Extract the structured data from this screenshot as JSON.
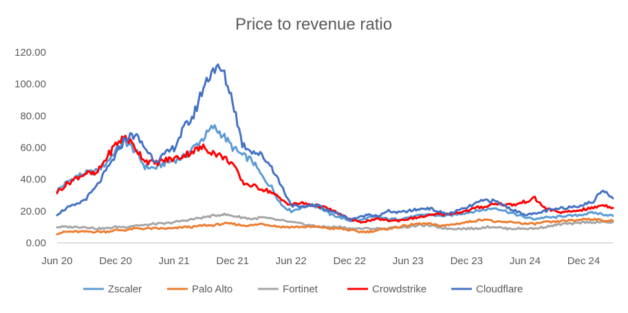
{
  "chart_data": {
    "type": "line",
    "title": "Price to revenue ratio",
    "xlabel": "",
    "ylabel": "",
    "ylim": [
      0,
      120
    ],
    "yticks": [
      "0.00",
      "20.00",
      "40.00",
      "60.00",
      "80.00",
      "100.00",
      "120.00"
    ],
    "xlim": [
      "2020-06",
      "2025-03"
    ],
    "xticks": [
      {
        "x": "2020-06",
        "label": "Jun 20"
      },
      {
        "x": "2020-12",
        "label": "Dec 20"
      },
      {
        "x": "2021-06",
        "label": "Jun 21"
      },
      {
        "x": "2021-12",
        "label": "Dec 21"
      },
      {
        "x": "2022-06",
        "label": "Jun 22"
      },
      {
        "x": "2022-12",
        "label": "Dec 22"
      },
      {
        "x": "2023-06",
        "label": "Jun 23"
      },
      {
        "x": "2023-12",
        "label": "Dec 23"
      },
      {
        "x": "2024-06",
        "label": "Jun 24"
      },
      {
        "x": "2024-12",
        "label": "Dec 24"
      }
    ],
    "grid": false,
    "legend_position": "bottom",
    "x": [
      "2020-06",
      "2020-07",
      "2020-08",
      "2020-09",
      "2020-10",
      "2020-11",
      "2020-12",
      "2021-01",
      "2021-02",
      "2021-03",
      "2021-04",
      "2021-05",
      "2021-06",
      "2021-07",
      "2021-08",
      "2021-09",
      "2021-10",
      "2021-11",
      "2021-12",
      "2022-01",
      "2022-02",
      "2022-03",
      "2022-04",
      "2022-05",
      "2022-06",
      "2022-07",
      "2022-08",
      "2022-09",
      "2022-10",
      "2022-11",
      "2022-12",
      "2023-01",
      "2023-02",
      "2023-03",
      "2023-04",
      "2023-05",
      "2023-06",
      "2023-07",
      "2023-08",
      "2023-09",
      "2023-10",
      "2023-11",
      "2023-12",
      "2024-01",
      "2024-02",
      "2024-03",
      "2024-04",
      "2024-05",
      "2024-06",
      "2024-07",
      "2024-08",
      "2024-09",
      "2024-10",
      "2024-11",
      "2024-12",
      "2025-01",
      "2025-02",
      "2025-03"
    ],
    "series": [
      {
        "name": "Zscaler",
        "color": "#5B9BD5",
        "values": [
          33,
          38,
          42,
          44,
          45,
          50,
          58,
          64,
          58,
          48,
          47,
          50,
          52,
          54,
          60,
          66,
          73,
          68,
          60,
          55,
          52,
          42,
          35,
          24,
          20,
          22,
          24,
          22,
          18,
          16,
          14,
          14,
          16,
          16,
          15,
          15,
          16,
          17,
          18,
          17,
          17,
          18,
          19,
          20,
          21,
          22,
          20,
          18,
          16,
          15,
          16,
          16,
          17,
          17,
          18,
          19,
          18,
          17
        ]
      },
      {
        "name": "Palo Alto",
        "color": "#ED7D31",
        "values": [
          6,
          7,
          7,
          7,
          7,
          7,
          8,
          8,
          9,
          9,
          9,
          9,
          9,
          10,
          10,
          11,
          11,
          12,
          12,
          11,
          11,
          12,
          11,
          10,
          10,
          10,
          10,
          10,
          9,
          9,
          8,
          7,
          7,
          8,
          9,
          10,
          11,
          12,
          12,
          11,
          11,
          12,
          13,
          14,
          15,
          13,
          13,
          13,
          12,
          12,
          13,
          13,
          14,
          14,
          15,
          15,
          14,
          14
        ]
      },
      {
        "name": "Fortinet",
        "color": "#A5A5A5",
        "values": [
          10,
          10,
          10,
          10,
          9,
          9,
          10,
          10,
          11,
          11,
          12,
          12,
          13,
          14,
          15,
          16,
          17,
          18,
          17,
          16,
          15,
          16,
          15,
          14,
          13,
          12,
          11,
          10,
          10,
          10,
          9,
          9,
          9,
          9,
          9,
          10,
          10,
          11,
          11,
          10,
          9,
          9,
          9,
          9,
          10,
          10,
          9,
          9,
          9,
          9,
          10,
          11,
          12,
          12,
          13,
          13,
          13,
          13
        ]
      },
      {
        "name": "Crowdstrike",
        "color": "#FF0000",
        "values": [
          32,
          37,
          41,
          44,
          43,
          53,
          62,
          67,
          60,
          52,
          50,
          52,
          53,
          55,
          58,
          60,
          57,
          54,
          50,
          38,
          36,
          34,
          32,
          27,
          24,
          25,
          24,
          23,
          21,
          18,
          15,
          13,
          14,
          15,
          14,
          14,
          15,
          16,
          17,
          18,
          18,
          19,
          20,
          22,
          23,
          25,
          24,
          24,
          26,
          28,
          22,
          20,
          19,
          20,
          21,
          22,
          24,
          22
        ]
      },
      {
        "name": "Cloudflare",
        "color": "#4472C4",
        "values": [
          18,
          22,
          24,
          28,
          35,
          45,
          55,
          66,
          68,
          60,
          52,
          55,
          60,
          72,
          80,
          98,
          110,
          108,
          90,
          62,
          58,
          55,
          48,
          36,
          24,
          22,
          24,
          23,
          20,
          18,
          15,
          16,
          18,
          17,
          20,
          19,
          20,
          21,
          22,
          20,
          18,
          20,
          22,
          25,
          27,
          26,
          23,
          20,
          18,
          18,
          20,
          21,
          22,
          23,
          24,
          26,
          34,
          28
        ]
      }
    ]
  }
}
